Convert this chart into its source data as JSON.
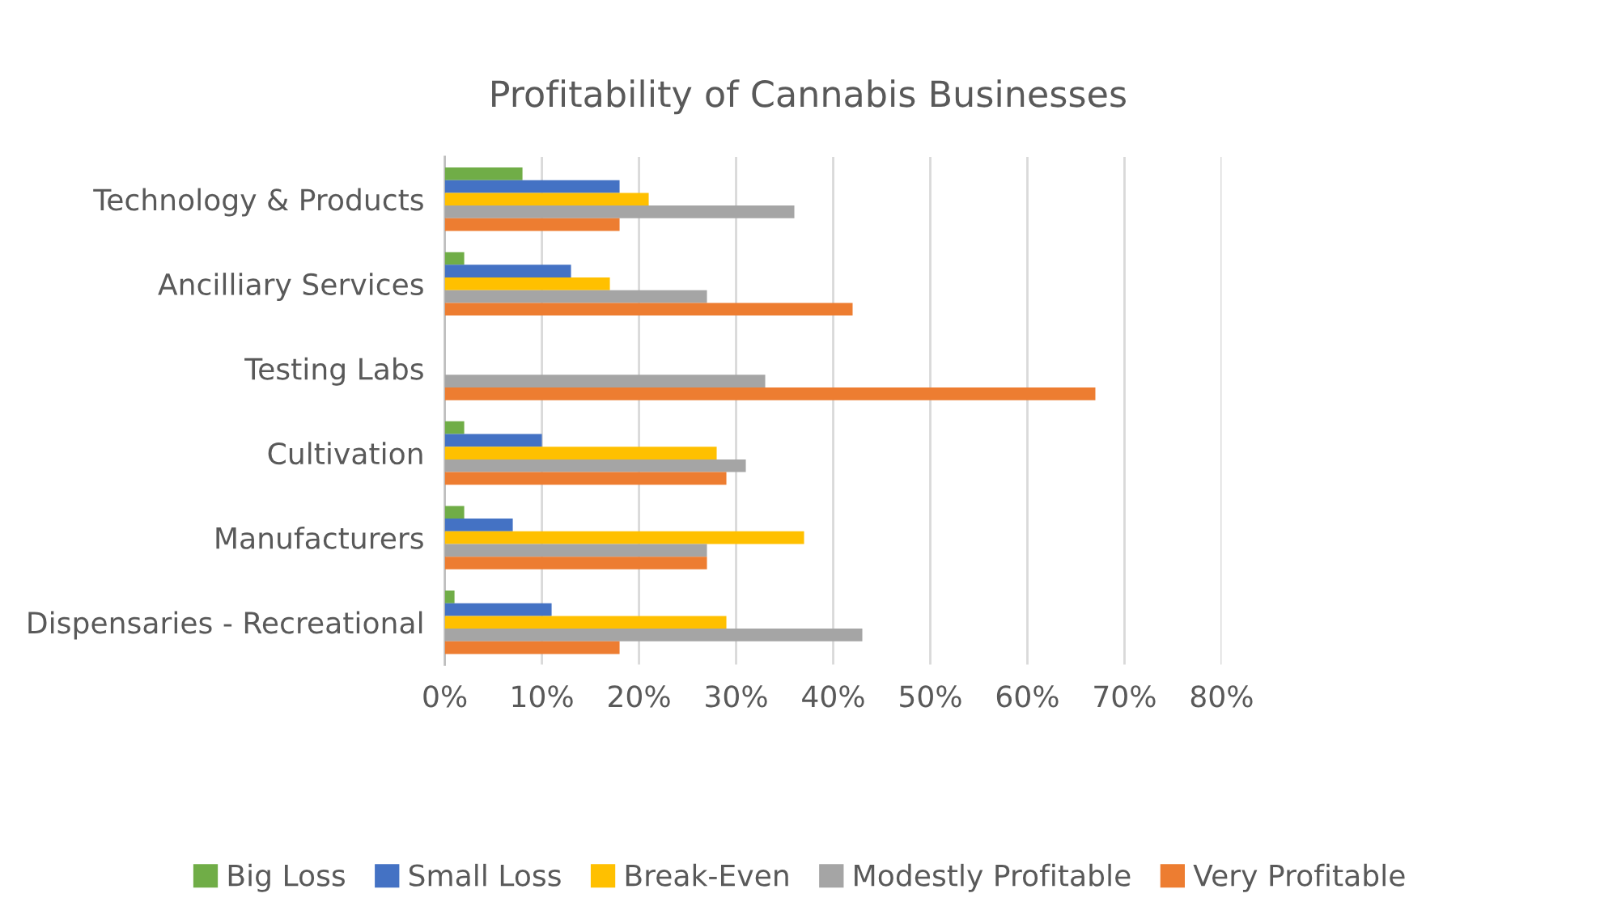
{
  "chart_data": {
    "type": "bar",
    "orientation": "horizontal",
    "title": "Profitability of Cannabis Businesses",
    "categories": [
      "Technology & Products",
      "Ancilliary Services",
      "Testing Labs",
      "Cultivation",
      "Manufacturers",
      "Dispensaries - Recreational"
    ],
    "series": [
      {
        "name": "Big Loss",
        "color": "#70ad47",
        "values": [
          8,
          2,
          0,
          2,
          2,
          1
        ]
      },
      {
        "name": "Small Loss",
        "color": "#4472c4",
        "values": [
          18,
          13,
          0,
          10,
          7,
          11
        ]
      },
      {
        "name": "Break-Even",
        "color": "#ffc000",
        "values": [
          21,
          17,
          0,
          28,
          37,
          29
        ]
      },
      {
        "name": "Modestly Profitable",
        "color": "#a5a5a5",
        "values": [
          36,
          27,
          33,
          31,
          27,
          43
        ]
      },
      {
        "name": "Very Profitable",
        "color": "#ed7d31",
        "values": [
          18,
          42,
          67,
          29,
          27,
          18
        ]
      }
    ],
    "xlim": [
      0,
      80
    ],
    "xticks": [
      {
        "value": 0,
        "label": "0%"
      },
      {
        "value": 10,
        "label": "10%"
      },
      {
        "value": 20,
        "label": "20%"
      },
      {
        "value": 30,
        "label": "30%"
      },
      {
        "value": 40,
        "label": "40%"
      },
      {
        "value": 50,
        "label": "50%"
      },
      {
        "value": 60,
        "label": "60%"
      },
      {
        "value": 70,
        "label": "70%"
      },
      {
        "value": 80,
        "label": "80%"
      }
    ],
    "grid": "x",
    "legend": "bottom"
  }
}
